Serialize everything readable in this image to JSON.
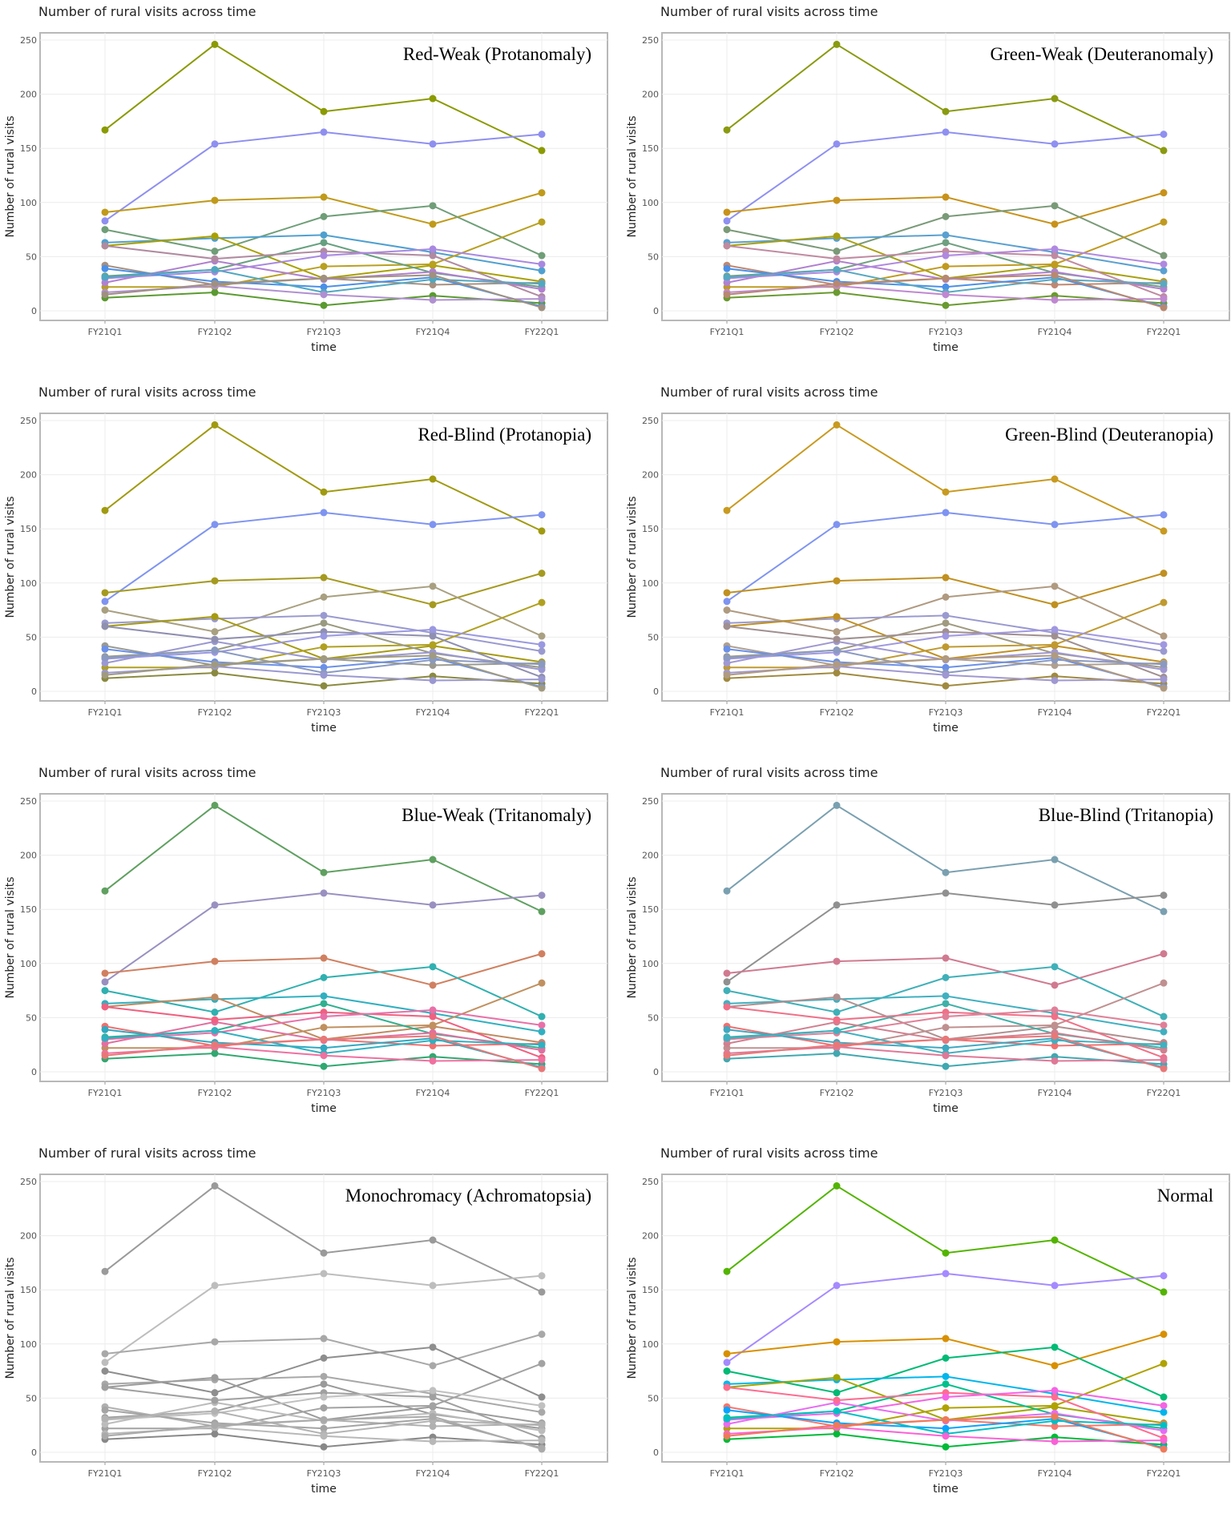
{
  "chart_data": [
    {
      "panel": "protanomaly",
      "label": "Red-Weak (Protanomaly)"
    },
    {
      "panel": "deuteranomaly",
      "label": "Green-Weak (Deuteranomaly)"
    },
    {
      "panel": "protanopia",
      "label": "Red-Blind (Protanopia)"
    },
    {
      "panel": "deuteranopia",
      "label": "Green-Blind (Deuteranopia)"
    },
    {
      "panel": "tritanomaly",
      "label": "Blue-Weak (Tritanomaly)"
    },
    {
      "panel": "tritanopia",
      "label": "Blue-Blind (Tritanopia)"
    },
    {
      "panel": "achromatopsia",
      "label": "Monochromacy (Achromatopsia)"
    },
    {
      "panel": "normal",
      "label": "Normal"
    }
  ],
  "shared": {
    "type": "line",
    "title": "Number of rural visits across time",
    "xlabel": "time",
    "ylabel": "Number of rural visits",
    "categories": [
      "FY21Q1",
      "FY21Q2",
      "FY21Q3",
      "FY21Q4",
      "FY22Q1"
    ],
    "yticks": [
      0,
      50,
      100,
      150,
      200,
      250
    ],
    "ylim": [
      -8,
      260
    ],
    "grid": true,
    "legend": "none",
    "series": [
      [
        167,
        246,
        184,
        196,
        148
      ],
      [
        83,
        154,
        165,
        154,
        163
      ],
      [
        91,
        102,
        105,
        80,
        109
      ],
      [
        75,
        55,
        87,
        97,
        51
      ],
      [
        63,
        67,
        70,
        54,
        37
      ],
      [
        60,
        69,
        30,
        42,
        27
      ],
      [
        22,
        22,
        41,
        43,
        82
      ],
      [
        32,
        38,
        63,
        35,
        22
      ],
      [
        42,
        24,
        30,
        24,
        26
      ],
      [
        26,
        46,
        29,
        36,
        20
      ],
      [
        60,
        48,
        55,
        51,
        13
      ],
      [
        30,
        36,
        51,
        57,
        43
      ],
      [
        12,
        17,
        5,
        14,
        7
      ],
      [
        39,
        27,
        22,
        31,
        4
      ],
      [
        31,
        38,
        17,
        29,
        25
      ],
      [
        17,
        23,
        15,
        10,
        11
      ],
      [
        15,
        25,
        30,
        33,
        3
      ]
    ]
  },
  "palettes": {
    "normal": [
      "#53B400",
      "#A58AFF",
      "#D89000",
      "#00BA75",
      "#00B6EB",
      "#A3A500",
      "#B0A200",
      "#00C08B",
      "#F8766D",
      "#E76BF3",
      "#FF6C91",
      "#F564E3",
      "#00BA38",
      "#06A4FF",
      "#00BFC4",
      "#FB61D7",
      "#EE7A5A"
    ],
    "protanomaly": [
      "#8A9A00",
      "#8F8FF0",
      "#C09A1A",
      "#6F9E78",
      "#4FA0D0",
      "#A8A000",
      "#B8A020",
      "#66A080",
      "#A89080",
      "#B080D0",
      "#B08AA0",
      "#A888E0",
      "#5A9A30",
      "#4A90E8",
      "#50A8C0",
      "#B090D0",
      "#A09080"
    ],
    "deuteranomaly": [
      "#8A9A10",
      "#8F90F0",
      "#C8921A",
      "#7A9A78",
      "#5AA0D0",
      "#A8A010",
      "#C09A20",
      "#70A080",
      "#C08870",
      "#B080D0",
      "#C08AA0",
      "#B088E0",
      "#6A9A30",
      "#4A90E8",
      "#58A8C0",
      "#C088D0",
      "#B88870"
    ],
    "protanopia": [
      "#A09A10",
      "#7F94F0",
      "#A59A20",
      "#A8A080",
      "#9A9AD0",
      "#A59A10",
      "#B0A020",
      "#9A9A80",
      "#9A9A90",
      "#9A98D0",
      "#8F8FB0",
      "#9A98E0",
      "#8A8A40",
      "#6A90E8",
      "#8A9AC0",
      "#9A98D0",
      "#A09A80"
    ],
    "deuteranopia": [
      "#C89A20",
      "#7F94F0",
      "#C09020",
      "#B09A80",
      "#9A9AD0",
      "#C09020",
      "#C09A30",
      "#A09A80",
      "#B0A090",
      "#A098D0",
      "#A08F90",
      "#A098E0",
      "#A08A40",
      "#6A90E8",
      "#8A9AC0",
      "#A098D0",
      "#B09A80"
    ],
    "tritanomaly": [
      "#5FA060",
      "#9A90C0",
      "#D08060",
      "#30B0B0",
      "#30B0C0",
      "#C08A60",
      "#C09060",
      "#30B090",
      "#F07070",
      "#E070A0",
      "#F06080",
      "#E870A8",
      "#30A870",
      "#30A8C0",
      "#30B0C0",
      "#F070A0",
      "#E87878"
    ],
    "tritanopia": [
      "#7AA0B0",
      "#909090",
      "#D07A90",
      "#40B0B8",
      "#40B0C0",
      "#B09090",
      "#C09090",
      "#40B0A8",
      "#F07070",
      "#D08090",
      "#F07088",
      "#E08098",
      "#40A8B0",
      "#40A8C0",
      "#40B0C0",
      "#E07898",
      "#E87878"
    ],
    "achromatopsia": [
      "#9A9A9A",
      "#BDBDBD",
      "#A8A8A8",
      "#8E8E8E",
      "#A8A8A8",
      "#9C9C9C",
      "#A2A2A2",
      "#9A9A9A",
      "#B0B0B0",
      "#BBBBBB",
      "#A0A0A0",
      "#C0C0C0",
      "#888888",
      "#A4A4A4",
      "#B2B2B2",
      "#B8B8B8",
      "#AAAAAA"
    ]
  }
}
